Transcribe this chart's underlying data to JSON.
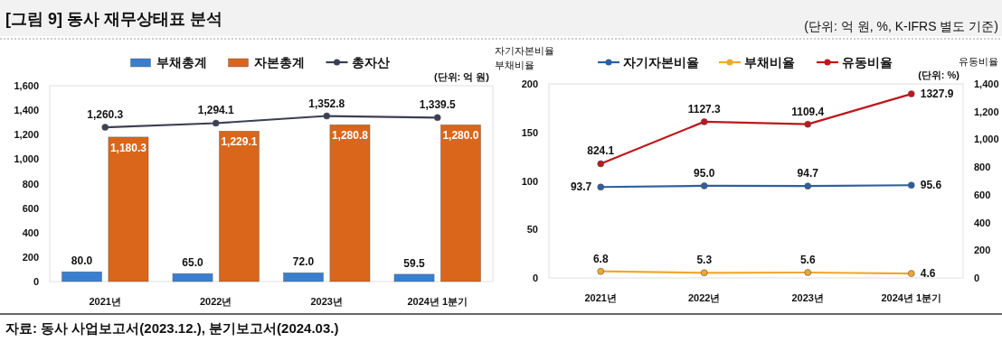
{
  "chart_data": [
    {
      "type": "other",
      "title": "[그림 9] 동사 재무상태표 분석",
      "subtitle": "(단위: 억 원, %, K-IFRS 별도 기준)",
      "annotations": [
        "자료: 동사 사업보고서(2023.12.), 분기보고서(2024.03.)"
      ]
    },
    {
      "type": "bar",
      "categories": [
        "2021년",
        "2022년",
        "2023년",
        "2024년 1분기"
      ],
      "series": [
        {
          "name": "부채총계",
          "color": "#3a7fcf",
          "values": [
            80.0,
            65.0,
            72.0,
            59.5
          ],
          "value_labels": [
            "80.0",
            "65.0",
            "72.0",
            "59.5"
          ]
        },
        {
          "name": "자본총계",
          "color": "#d9661a",
          "values": [
            1180.3,
            1229.1,
            1280.8,
            1280.0
          ],
          "value_labels": [
            "1,180.3",
            "1,229.1",
            "1,280.8",
            "1,280.0"
          ]
        },
        {
          "name": "총자산",
          "type": "line",
          "color": "#3b3f52",
          "values": [
            1260.3,
            1294.1,
            1352.8,
            1339.5
          ],
          "value_labels": [
            "1,260.3",
            "1,294.1",
            "1,352.8",
            "1,339.5"
          ]
        }
      ],
      "ylim": [
        0,
        1600
      ],
      "yticks": [
        0,
        200,
        400,
        600,
        800,
        {
          "value": 1000,
          "label": "1,000"
        },
        {
          "value": 1200,
          "label": "1,200"
        },
        {
          "value": 1400,
          "label": "1,400"
        },
        {
          "value": 1600,
          "label": "1,600"
        }
      ],
      "legend": "top",
      "marker": "circle",
      "annotations": [
        "(단위: 억 원)"
      ]
    },
    {
      "type": "line",
      "categories": [
        "2021년",
        "2022년",
        "2023년",
        "2024년 1분기"
      ],
      "series": [
        {
          "name": "자기자본비율",
          "color": "#2e5f9e",
          "values": [
            93.7,
            95.0,
            94.7,
            95.6
          ],
          "value_labels": [
            "93.7",
            "95.0",
            "94.7",
            "95.6"
          ]
        },
        {
          "name": "부채비율",
          "color": "#f0a830",
          "values": [
            6.8,
            5.3,
            5.6,
            4.6
          ],
          "value_labels": [
            "6.8",
            "5.3",
            "5.6",
            "4.6"
          ]
        },
        {
          "name": "유동비율",
          "color": "#c0161c",
          "axis": "y2",
          "values": [
            824.1,
            1127.3,
            1109.4,
            1327.9
          ],
          "value_labels": [
            "824.1",
            "1127.3",
            "1109.4",
            "1327.9"
          ]
        }
      ],
      "ylabel": "자기자본비율\n부채비율",
      "y2label": "유동비율",
      "ylim": [
        0,
        200
      ],
      "yticks": [
        0,
        50,
        100,
        150,
        200
      ],
      "y2lim": [
        0,
        1400
      ],
      "y2ticks": [
        0,
        200,
        400,
        600,
        800,
        {
          "value": 1000,
          "label": "1,000"
        },
        {
          "value": 1200,
          "label": "1,200"
        },
        {
          "value": 1400,
          "label": "1,400"
        }
      ],
      "legend": "top",
      "marker": "circle",
      "annotations": [
        "(단위: %)"
      ]
    }
  ]
}
